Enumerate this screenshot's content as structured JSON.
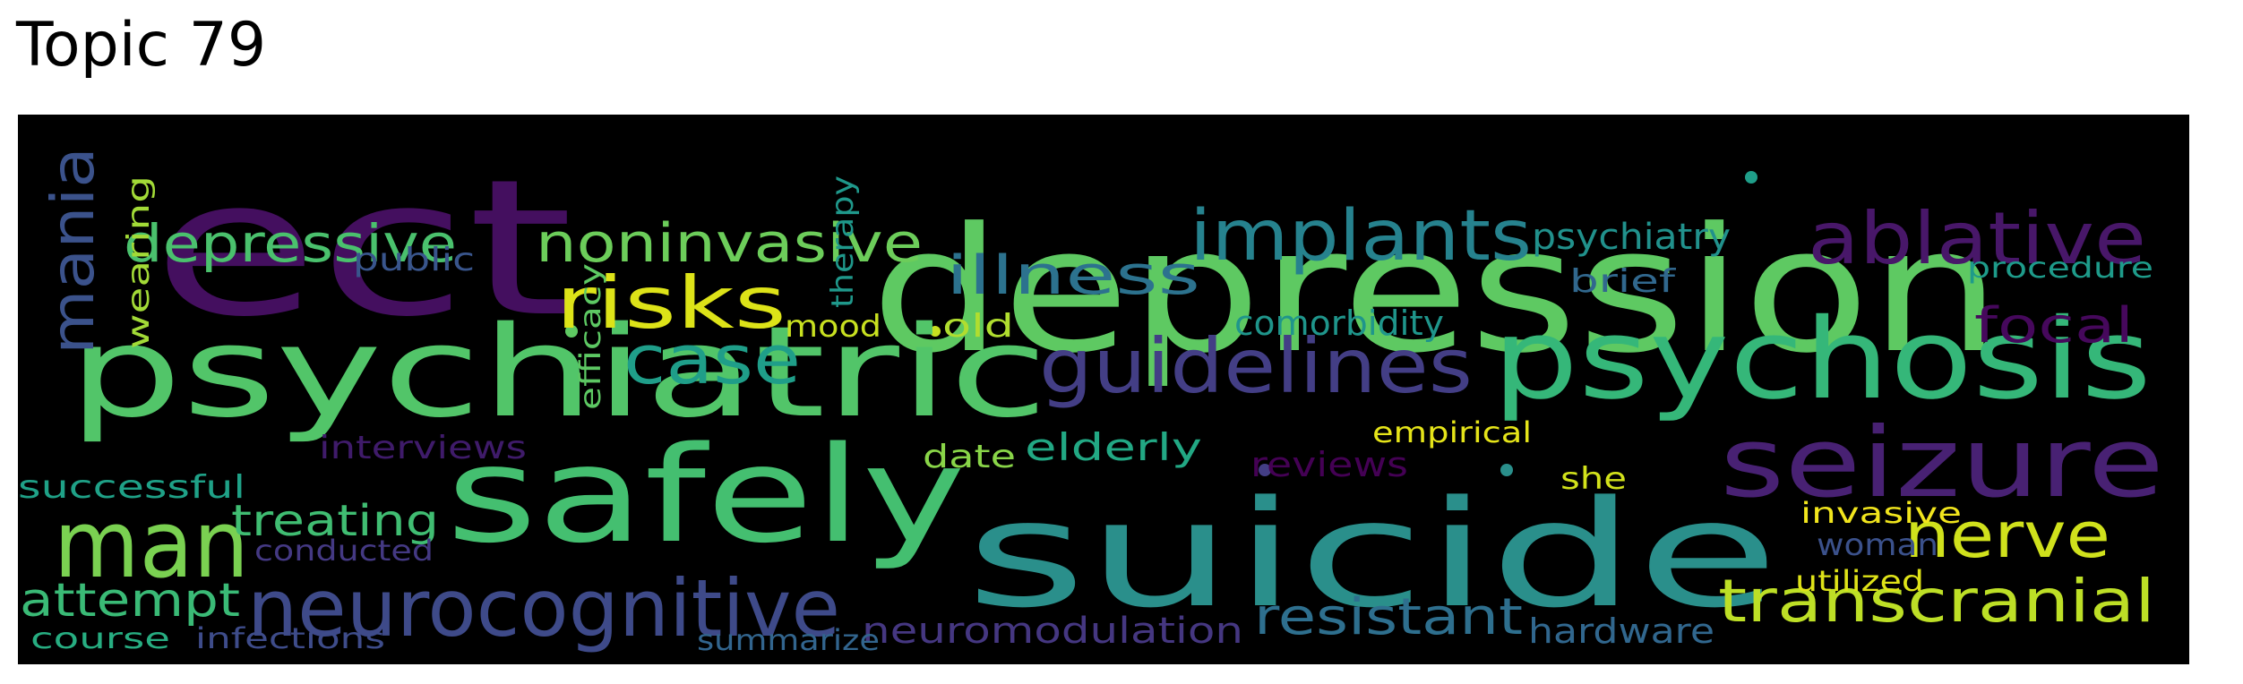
{
  "title": "Topic 79",
  "colors": {
    "background": "#000000",
    "title": "#000000",
    "palette": "viridis"
  },
  "words": [
    {
      "text": "depression",
      "color": "#5ec962"
    },
    {
      "text": "ect",
      "color": "#440f5f"
    },
    {
      "text": "suicide",
      "color": "#2a8f8b"
    },
    {
      "text": "psychiatric",
      "color": "#52c569"
    },
    {
      "text": "safely",
      "color": "#44bf70"
    },
    {
      "text": "psychosis",
      "color": "#35b779"
    },
    {
      "text": "seizure",
      "color": "#482173"
    },
    {
      "text": "man",
      "color": "#7ad151"
    },
    {
      "text": "neurocognitive",
      "color": "#3e4a89"
    },
    {
      "text": "guidelines",
      "color": "#433e85"
    },
    {
      "text": "implants",
      "color": "#26828e"
    },
    {
      "text": "ablative",
      "color": "#481769"
    },
    {
      "text": "risks",
      "color": "#dde318"
    },
    {
      "text": "case",
      "color": "#1f9e89"
    },
    {
      "text": "mania",
      "color": "#3b528b"
    },
    {
      "text": "transcranial",
      "color": "#bddf26"
    },
    {
      "text": "nerve",
      "color": "#d0e11c"
    },
    {
      "text": "noninvasive",
      "color": "#6ccd5a"
    },
    {
      "text": "depressive",
      "color": "#4ac16d"
    },
    {
      "text": "illness",
      "color": "#2c728e"
    },
    {
      "text": "resistant",
      "color": "#2e6f8e"
    },
    {
      "text": "attempt",
      "color": "#3aba76"
    },
    {
      "text": "focal",
      "color": "#46085c"
    },
    {
      "text": "treating",
      "color": "#40bd72"
    },
    {
      "text": "neuromodulation",
      "color": "#453781"
    },
    {
      "text": "psychiatry",
      "color": "#21918c"
    },
    {
      "text": "comorbidity",
      "color": "#1f958b"
    },
    {
      "text": "elderly",
      "color": "#22a884"
    },
    {
      "text": "successful",
      "color": "#1fa187"
    },
    {
      "text": "interviews",
      "color": "#3f1b6a"
    },
    {
      "text": "reviews",
      "color": "#440154"
    },
    {
      "text": "hardware",
      "color": "#31678e"
    },
    {
      "text": "procedure",
      "color": "#1e9b8a"
    },
    {
      "text": "brief",
      "color": "#31688e"
    },
    {
      "text": "public",
      "color": "#39558c"
    },
    {
      "text": "therapy",
      "color": "#1f988b"
    },
    {
      "text": "efficacy",
      "color": "#5dc863"
    },
    {
      "text": "wearing",
      "color": "#a2da37"
    },
    {
      "text": "mood",
      "color": "#c8e020"
    },
    {
      "text": "old",
      "color": "#b0dd2f"
    },
    {
      "text": "date",
      "color": "#89d548"
    },
    {
      "text": "empirical",
      "color": "#e5e419"
    },
    {
      "text": "she",
      "color": "#d2e21b"
    },
    {
      "text": "invasive",
      "color": "#f1e51d"
    },
    {
      "text": "woman",
      "color": "#3b518b"
    },
    {
      "text": "utilized",
      "color": "#dfe318"
    },
    {
      "text": "conducted",
      "color": "#443983"
    },
    {
      "text": "course",
      "color": "#27ad81"
    },
    {
      "text": "infections",
      "color": "#3e4c8a"
    },
    {
      "text": "summarize",
      "color": "#32658e"
    }
  ]
}
